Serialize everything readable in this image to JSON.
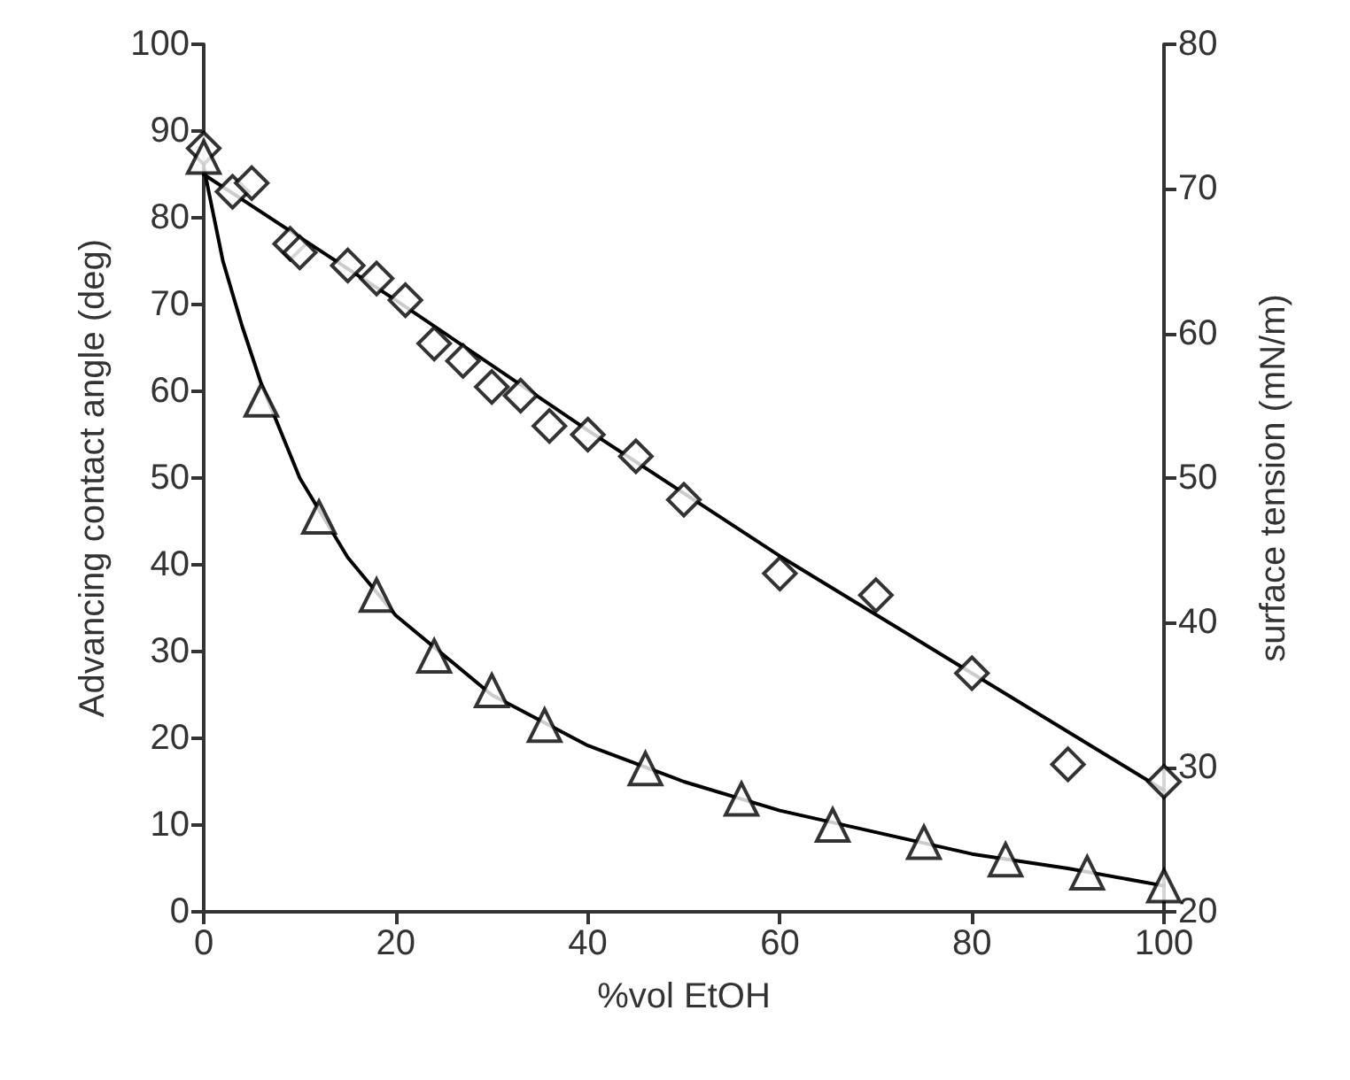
{
  "chart_data": {
    "type": "scatter",
    "xlabel": "%vol EtOH",
    "ylabel": "Advancing contact angle (deg)",
    "y2label": "surface tension (mN/m)",
    "xlim": [
      0,
      100
    ],
    "xticks": [
      0,
      20,
      40,
      60,
      80,
      100
    ],
    "ylim": [
      0,
      100
    ],
    "yticks": [
      0,
      10,
      20,
      30,
      40,
      50,
      60,
      70,
      80,
      90,
      100
    ],
    "y2lim": [
      20,
      80
    ],
    "y2ticks": [
      20,
      30,
      40,
      50,
      60,
      70,
      80
    ],
    "grid": false,
    "series": [
      {
        "marker": "diamond",
        "color": "#000000",
        "x": [
          0,
          3,
          5,
          9,
          10,
          15,
          18,
          21,
          24,
          27,
          30,
          33,
          36,
          40,
          45,
          50,
          60,
          70,
          80,
          90,
          100
        ],
        "values": [
          88,
          83,
          84,
          77,
          76,
          74.5,
          73,
          70.5,
          65.5,
          63.5,
          60.5,
          59.5,
          56,
          55,
          52.5,
          47.5,
          39,
          36.5,
          27.5,
          17,
          15
        ]
      },
      {
        "type": "line",
        "marker": "none",
        "color": "#000000",
        "x": [
          0,
          20,
          40,
          60,
          80,
          100
        ],
        "values": [
          85,
          70.5,
          55.5,
          41,
          27.5,
          14
        ]
      },
      {
        "marker": "triangle",
        "axis": "y2",
        "color": "#000000",
        "x": [
          0,
          6,
          12,
          18,
          24,
          30,
          35.5,
          46,
          56,
          65.5,
          75,
          83.5,
          92,
          100
        ],
        "values": [
          72.2,
          55.4,
          47.3,
          41.9,
          37.7,
          35.3,
          32.9,
          29.9,
          27.8,
          26,
          24.8,
          23.6,
          22.7,
          21.8
        ]
      },
      {
        "type": "line",
        "marker": "none",
        "axis": "y2",
        "color": "#000000",
        "x": [
          0,
          2,
          4,
          6,
          10,
          15,
          20,
          30,
          40,
          50,
          60,
          70,
          80,
          90,
          100
        ],
        "values": [
          71.5,
          65,
          60.5,
          56.5,
          50,
          44.5,
          40.5,
          35,
          31.5,
          29,
          27,
          25.5,
          24,
          23,
          21.8
        ]
      }
    ]
  }
}
